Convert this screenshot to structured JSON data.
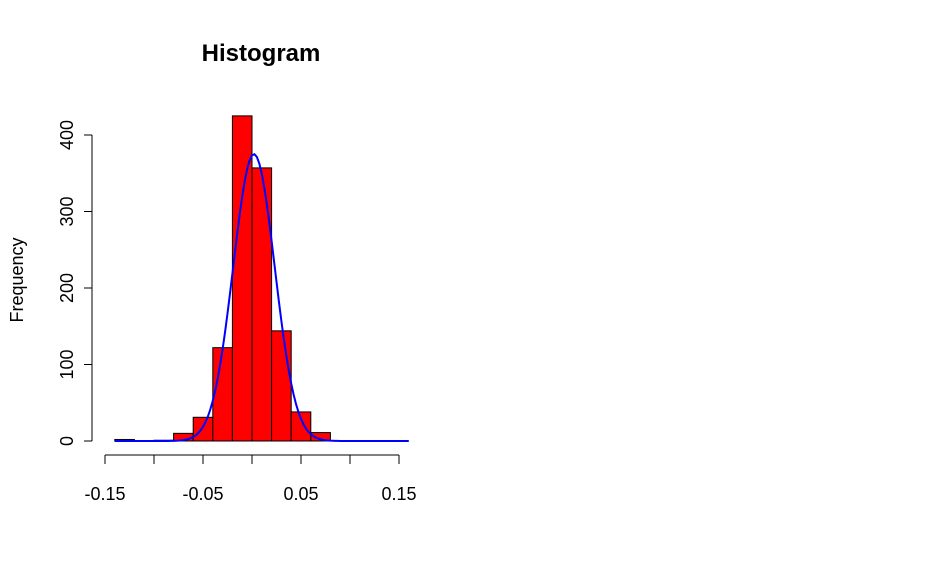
{
  "chart_data": {
    "type": "bar",
    "title": "Histogram",
    "xlabel": "",
    "ylabel": "Frequency",
    "bins": [
      {
        "x0": -0.14,
        "x1": -0.12,
        "count": 2
      },
      {
        "x0": -0.12,
        "x1": -0.1,
        "count": 0
      },
      {
        "x0": -0.1,
        "x1": -0.08,
        "count": 1
      },
      {
        "x0": -0.08,
        "x1": -0.06,
        "count": 10
      },
      {
        "x0": -0.06,
        "x1": -0.04,
        "count": 31
      },
      {
        "x0": -0.04,
        "x1": -0.02,
        "count": 122
      },
      {
        "x0": -0.02,
        "x1": 0.0,
        "count": 425
      },
      {
        "x0": 0.0,
        "x1": 0.02,
        "count": 357
      },
      {
        "x0": 0.02,
        "x1": 0.04,
        "count": 144
      },
      {
        "x0": 0.04,
        "x1": 0.06,
        "count": 38
      },
      {
        "x0": 0.06,
        "x1": 0.08,
        "count": 11
      }
    ],
    "density_curve": {
      "color": "#0000ff",
      "mean": 0.002,
      "sd": 0.0212,
      "peak": 375,
      "x_range": [
        -0.14,
        0.16
      ]
    },
    "bar_fill": "#ff0000",
    "bar_stroke": "#000000",
    "xlim": [
      -0.15,
      0.16
    ],
    "ylim": [
      0,
      425
    ],
    "x_ticks": [
      -0.15,
      -0.1,
      -0.05,
      0,
      0.05,
      0.1,
      0.15
    ],
    "x_tick_labels": [
      "-0.15",
      "",
      "-0.05",
      "",
      "0.05",
      "",
      "0.15"
    ],
    "y_ticks": [
      0,
      100,
      200,
      300,
      400
    ],
    "y_tick_labels": [
      "0",
      "100",
      "200",
      "300",
      "400"
    ],
    "grid": false,
    "legend": "none"
  }
}
